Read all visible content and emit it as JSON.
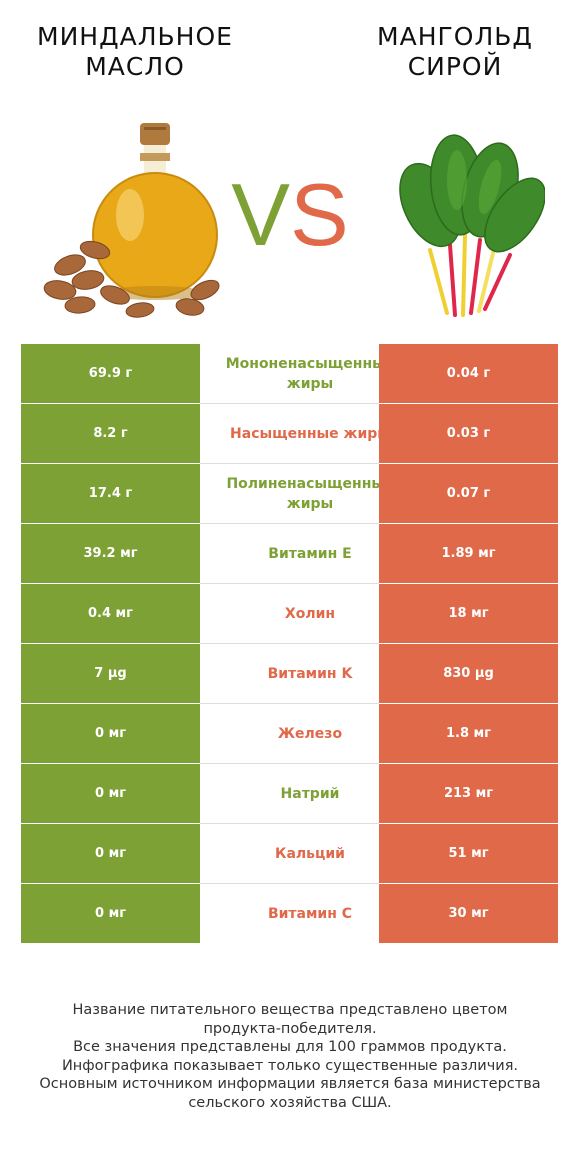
{
  "header": {
    "left_title": "МИНДАЛЬНОЕ\nМАСЛО",
    "right_title": "МАНГОЛЬД\nСИРОЙ",
    "vs_v": "V",
    "vs_s": "S"
  },
  "colors": {
    "left_winner": "#7da135",
    "right_winner": "#e0694a"
  },
  "rows": [
    {
      "left": "69.9 г",
      "name": "Мононенасыщенные жиры",
      "right": "0.04 г",
      "winner": "left"
    },
    {
      "left": "8.2 г",
      "name": "Насыщенные жиры",
      "right": "0.03 г",
      "winner": "right"
    },
    {
      "left": "17.4 г",
      "name": "Полиненасыщенные жиры",
      "right": "0.07 г",
      "winner": "left"
    },
    {
      "left": "39.2 мг",
      "name": "Витамин E",
      "right": "1.89 мг",
      "winner": "left"
    },
    {
      "left": "0.4 мг",
      "name": "Холин",
      "right": "18 мг",
      "winner": "right"
    },
    {
      "left": "7 µg",
      "name": "Витамин K",
      "right": "830 µg",
      "winner": "right"
    },
    {
      "left": "0 мг",
      "name": "Железо",
      "right": "1.8 мг",
      "winner": "right"
    },
    {
      "left": "0 мг",
      "name": "Натрий",
      "right": "213 мг",
      "winner": "left"
    },
    {
      "left": "0 мг",
      "name": "Кальций",
      "right": "51 мг",
      "winner": "right"
    },
    {
      "left": "0 мг",
      "name": "Витамин C",
      "right": "30 мг",
      "winner": "right"
    }
  ],
  "footer": {
    "line1": "Название питательного вещества представлено цветом",
    "line2": "продукта-победителя.",
    "line3": "Все значения представлены для 100 граммов продукта.",
    "line4": "Инфографика показывает только существенные различия.",
    "line5": "Основным источником информации является база министерства",
    "line6": "сельского хозяйства США."
  }
}
